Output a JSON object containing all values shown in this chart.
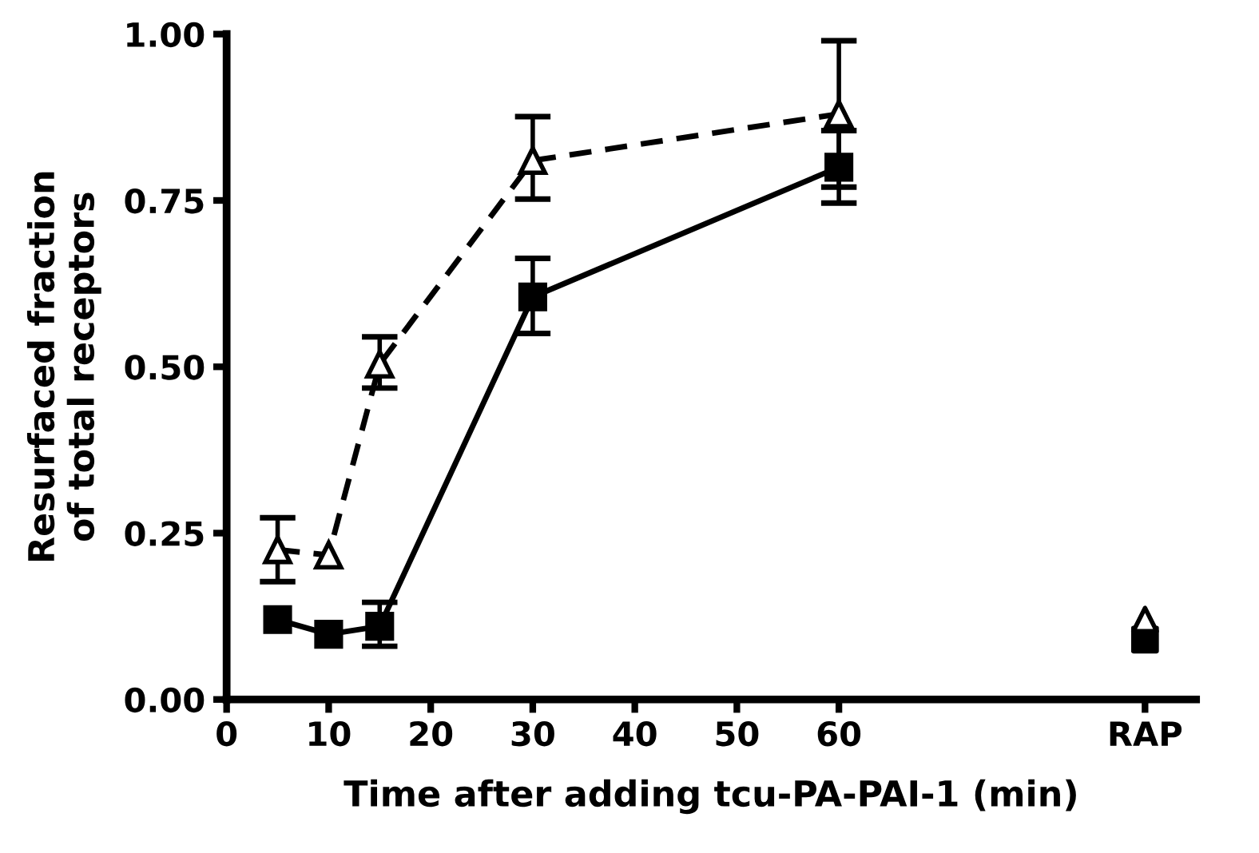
{
  "chart_data": {
    "type": "line",
    "xlabel": "Time after adding tcu-PA-PAI-1 (min)",
    "ylabel": "Resurfaced fraction\nof total receptors",
    "xlim": [
      0,
      95
    ],
    "xticks": [
      0,
      10,
      20,
      30,
      40,
      50,
      60,
      {
        "value": 90,
        "label": "RAP"
      }
    ],
    "ylim": [
      0,
      1
    ],
    "yticks": [
      {
        "value": 0,
        "label": "0.00"
      },
      0.25,
      {
        "value": 0.5,
        "label": "0.50"
      },
      0.75,
      {
        "value": 1,
        "label": "1.00"
      }
    ],
    "grid": false,
    "legend": false,
    "series": [
      {
        "color": "#000000",
        "marker": "triangle",
        "line_style": "dashed",
        "x": [
          5,
          10,
          15,
          30,
          60
        ],
        "values": [
          0.225,
          0.217,
          0.504,
          0.81,
          0.88
        ],
        "errors": [
          [
            0.177,
            0.273
          ],
          null,
          [
            0.468,
            0.545
          ],
          [
            0.752,
            0.876
          ],
          [
            0.77,
            0.99
          ]
        ]
      },
      {
        "color": "#000000",
        "marker": "square",
        "line_style": "solid",
        "x": [
          5,
          10,
          15,
          30,
          60
        ],
        "values": [
          0.12,
          0.098,
          0.11,
          0.605,
          0.8
        ],
        "errors": [
          null,
          null,
          [
            0.08,
            0.146
          ],
          [
            0.55,
            0.663
          ],
          [
            0.746,
            0.855
          ]
        ]
      },
      {
        "type": "scatter",
        "color": "#000000",
        "marker": "triangle",
        "x": [
          90
        ],
        "values": [
          0.12
        ]
      },
      {
        "type": "scatter",
        "color": "#000000",
        "marker": "square",
        "x": [
          90
        ],
        "values": [
          0.09
        ]
      }
    ]
  }
}
